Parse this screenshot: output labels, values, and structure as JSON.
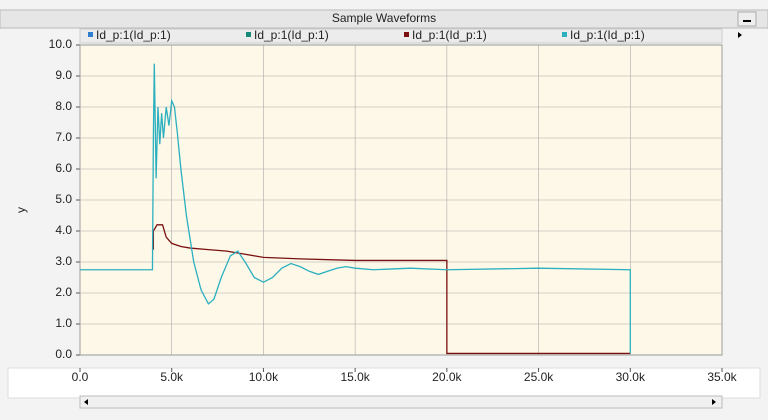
{
  "chart_data": {
    "type": "line",
    "title": "Sample Waveforms",
    "ylabel": "y",
    "xlim": [
      0,
      35000
    ],
    "ylim": [
      0,
      10
    ],
    "xticks": [
      {
        "value": 0,
        "label": "0.0"
      },
      {
        "value": 5000,
        "label": "5.0k"
      },
      {
        "value": 10000,
        "label": "10.0k"
      },
      {
        "value": 15000,
        "label": "15.0k"
      },
      {
        "value": 20000,
        "label": "20.0k"
      },
      {
        "value": 25000,
        "label": "25.0k"
      },
      {
        "value": 30000,
        "label": "30.0k"
      },
      {
        "value": 35000,
        "label": "35.0k"
      }
    ],
    "yticks": [
      {
        "value": 0,
        "label": "0.0"
      },
      {
        "value": 1,
        "label": "1.0"
      },
      {
        "value": 2,
        "label": "2.0"
      },
      {
        "value": 3,
        "label": "3.0"
      },
      {
        "value": 4,
        "label": "4.0"
      },
      {
        "value": 5,
        "label": "5.0"
      },
      {
        "value": 6,
        "label": "6.0"
      },
      {
        "value": 7,
        "label": "7.0"
      },
      {
        "value": 8,
        "label": "8.0"
      },
      {
        "value": 9,
        "label": "9.0"
      },
      {
        "value": 10,
        "label": "10.0"
      }
    ],
    "grid": true,
    "series": [
      {
        "name": "Id_p:1(Id_p:1)",
        "color": "#2f7fd0",
        "hidden": true
      },
      {
        "name": "Id_p:1(Id_p:1)",
        "color": "#1a8a78",
        "hidden": true
      },
      {
        "name": "Id_p:1(Id_p:1)",
        "color": "#7a1010",
        "x": [
          4000,
          4000,
          4200,
          4500,
          4700,
          5000,
          5500,
          6000,
          7000,
          8000,
          9000,
          10000,
          12000,
          15000,
          18000,
          20000,
          20000,
          30000
        ],
        "values": [
          3.4,
          4.0,
          4.2,
          4.2,
          3.8,
          3.6,
          3.5,
          3.45,
          3.4,
          3.35,
          3.25,
          3.15,
          3.1,
          3.05,
          3.05,
          3.05,
          0.05,
          0.05
        ]
      },
      {
        "name": "Id_p:1(Id_p:1)",
        "color": "#2cb0c0",
        "x": [
          0,
          3950,
          4000,
          4050,
          4150,
          4250,
          4350,
          4450,
          4550,
          4700,
          4850,
          5000,
          5150,
          5300,
          5500,
          5800,
          6200,
          6600,
          7000,
          7300,
          7700,
          8200,
          8600,
          9000,
          9500,
          10000,
          10500,
          11000,
          11500,
          12000,
          12500,
          13000,
          13500,
          14000,
          14500,
          15000,
          16000,
          18000,
          20000,
          25000,
          30000,
          30000
        ],
        "values": [
          2.75,
          2.75,
          7.0,
          9.4,
          5.7,
          8.0,
          6.8,
          7.8,
          7.0,
          8.0,
          7.4,
          8.2,
          8.0,
          7.2,
          6.0,
          4.5,
          3.0,
          2.1,
          1.65,
          1.8,
          2.5,
          3.2,
          3.35,
          3.0,
          2.5,
          2.35,
          2.5,
          2.8,
          2.95,
          2.85,
          2.7,
          2.6,
          2.7,
          2.8,
          2.85,
          2.8,
          2.75,
          2.8,
          2.75,
          2.8,
          2.75,
          0.05
        ]
      }
    ]
  }
}
